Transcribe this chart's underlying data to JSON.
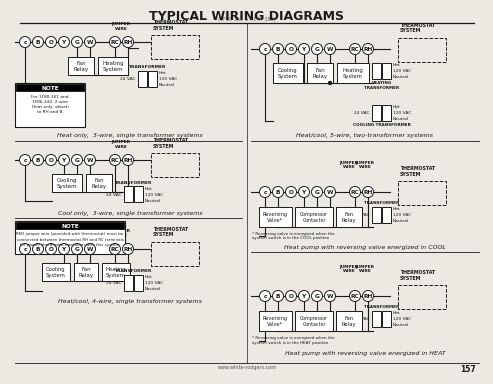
{
  "title": "TYPICAL WIRING DIAGRAMS",
  "subtitle_top": "(1F80-361 & HEAT 388)",
  "background_color": "#ece9e3",
  "page_number": "157",
  "website": "www.white-rodgers.com",
  "terminals": [
    "c",
    "B",
    "O",
    "Y",
    "G",
    "W",
    "RC",
    "RH"
  ],
  "left_term_x": [
    15,
    28,
    41,
    54,
    67,
    80,
    105,
    118
  ],
  "right_term_x": [
    255,
    268,
    281,
    294,
    307,
    320,
    345,
    358
  ],
  "term_r": 5.5,
  "line_color": "#1a1a1a",
  "text_color": "#1a1a1a"
}
